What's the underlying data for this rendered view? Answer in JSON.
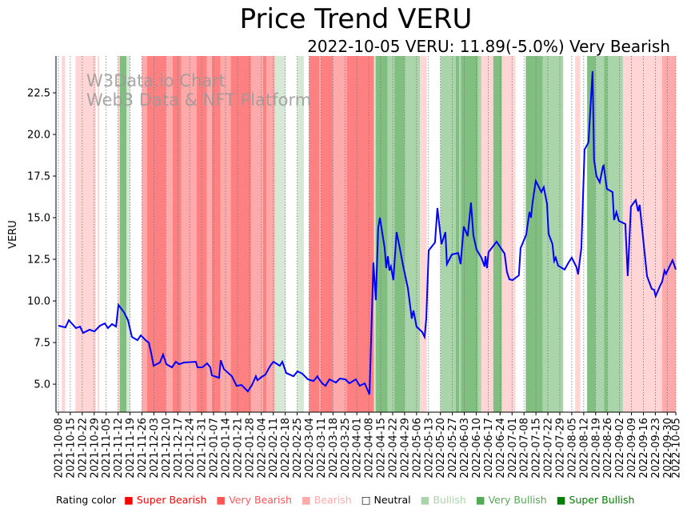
{
  "title": "Price Trend VERU",
  "subtitle": "2022-10-05 VERU: 11.89(-5.0%) Very Bearish",
  "watermark": [
    "W3Data.io Chart",
    "Web3 Data & NFT Platform"
  ],
  "legend": {
    "label": "Rating color",
    "items": [
      {
        "key": "super_bearish",
        "label": "Super Bearish",
        "color": "#ff0000"
      },
      {
        "key": "very_bearish",
        "label": "Very Bearish",
        "color": "#ff5555"
      },
      {
        "key": "bearish",
        "label": "Bearish",
        "color": "#ffaaaa"
      },
      {
        "key": "neutral",
        "label": "Neutral",
        "color": "#000000"
      },
      {
        "key": "bullish",
        "label": "Bullish",
        "color": "#aad4aa"
      },
      {
        "key": "very_bullish",
        "label": "Very Bullish",
        "color": "#55aa55"
      },
      {
        "key": "super_bullish",
        "label": "Super Bullish",
        "color": "#008000"
      }
    ]
  },
  "chart_data": {
    "type": "line",
    "title": "Price Trend VERU",
    "xlabel": "",
    "ylabel": "VERU",
    "start_date": "2021-10-08",
    "xlim_days": [
      -1.4,
      362
    ],
    "ylim": [
      3.32,
      24.71
    ],
    "line_color": "#0000ff",
    "yticks": [
      5.0,
      7.5,
      10.0,
      12.5,
      15.0,
      17.5,
      20.0,
      22.5
    ],
    "ytick_labels": [
      "5.0",
      "7.5",
      "10.0",
      "12.5",
      "15.0",
      "17.5",
      "20.0",
      "22.5"
    ],
    "xtick_days": [
      0,
      7,
      14,
      21,
      28,
      35,
      42,
      49,
      56,
      63,
      70,
      77,
      84,
      91,
      98,
      105,
      112,
      119,
      126,
      133,
      140,
      147,
      154,
      161,
      168,
      175,
      182,
      189,
      196,
      203,
      210,
      217,
      224,
      231,
      238,
      245,
      252,
      259,
      266,
      273,
      280,
      287,
      294,
      301,
      308,
      315,
      322,
      329,
      336,
      343,
      350,
      357,
      362
    ],
    "xtick_labels": [
      "2021-10-08",
      "2021-10-15",
      "2021-10-22",
      "2021-10-29",
      "2021-11-05",
      "2021-11-12",
      "2021-11-19",
      "2021-11-26",
      "2021-12-03",
      "2021-12-10",
      "2021-12-17",
      "2021-12-24",
      "2021-12-31",
      "2022-01-07",
      "2022-01-14",
      "2022-01-21",
      "2022-01-28",
      "2022-02-04",
      "2022-02-11",
      "2022-02-18",
      "2022-02-25",
      "2022-03-04",
      "2022-03-11",
      "2022-03-18",
      "2022-03-25",
      "2022-04-01",
      "2022-04-08",
      "2022-04-15",
      "2022-04-22",
      "2022-04-29",
      "2022-05-06",
      "2022-05-13",
      "2022-05-20",
      "2022-05-27",
      "2022-06-03",
      "2022-06-10",
      "2022-06-17",
      "2022-06-24",
      "2022-07-01",
      "2022-07-08",
      "2022-07-15",
      "2022-07-22",
      "2022-07-29",
      "2022-08-05",
      "2022-08-12",
      "2022-08-19",
      "2022-08-26",
      "2022-09-02",
      "2022-09-09",
      "2022-09-16",
      "2022-09-23",
      "2022-09-30",
      "2022-10-05"
    ],
    "rating_colors": {
      "super_bearish": "#ff8080",
      "very_bearish": "#ffaaaa",
      "bearish": "#ffd5d5",
      "bullish": "#d5ead5",
      "very_bullish": "#aad4aa",
      "super_bullish": "#80bf80"
    },
    "rating_bands": [
      [
        2,
        4,
        "bearish"
      ],
      [
        10,
        22,
        "bearish"
      ],
      [
        23,
        24,
        "bearish"
      ],
      [
        35,
        36,
        "bearish"
      ],
      [
        36,
        40,
        "super_bullish"
      ],
      [
        40,
        42,
        "bullish"
      ],
      [
        49,
        52,
        "very_bearish"
      ],
      [
        52,
        63,
        "super_bearish"
      ],
      [
        63,
        67,
        "very_bearish"
      ],
      [
        67,
        72,
        "super_bearish"
      ],
      [
        72,
        81,
        "very_bearish"
      ],
      [
        81,
        87,
        "super_bearish"
      ],
      [
        87,
        90,
        "very_bearish"
      ],
      [
        90,
        95,
        "super_bearish"
      ],
      [
        95,
        101,
        "very_bearish"
      ],
      [
        101,
        113,
        "super_bearish"
      ],
      [
        113,
        120,
        "very_bearish"
      ],
      [
        120,
        122,
        "super_bearish"
      ],
      [
        122,
        127,
        "very_bearish"
      ],
      [
        127,
        133,
        "bullish"
      ],
      [
        140,
        144,
        "bullish"
      ],
      [
        147,
        153,
        "super_bearish"
      ],
      [
        153,
        154,
        "very_bearish"
      ],
      [
        154,
        161,
        "super_bearish"
      ],
      [
        161,
        169,
        "very_bearish"
      ],
      [
        169,
        185,
        "super_bearish"
      ],
      [
        185,
        186,
        "bullish"
      ],
      [
        186,
        193,
        "super_bullish"
      ],
      [
        193,
        197,
        "very_bullish"
      ],
      [
        197,
        203,
        "super_bullish"
      ],
      [
        203,
        212,
        "very_bullish"
      ],
      [
        212,
        216,
        "bearish"
      ],
      [
        224,
        233,
        "very_bullish"
      ],
      [
        233,
        235,
        "super_bullish"
      ],
      [
        235,
        236,
        "very_bullish"
      ],
      [
        236,
        246,
        "super_bullish"
      ],
      [
        246,
        248,
        "very_bullish"
      ],
      [
        248,
        255,
        "bearish"
      ],
      [
        255,
        260,
        "super_bullish"
      ],
      [
        260,
        268,
        "bearish"
      ],
      [
        274,
        284,
        "super_bullish"
      ],
      [
        284,
        296,
        "very_bullish"
      ],
      [
        303,
        306,
        "bearish"
      ],
      [
        310,
        315,
        "super_bullish"
      ],
      [
        315,
        320,
        "very_bullish"
      ],
      [
        320,
        322,
        "super_bullish"
      ],
      [
        322,
        331,
        "very_bullish"
      ],
      [
        331,
        354,
        "bearish"
      ],
      [
        354,
        362,
        "very_bearish"
      ]
    ],
    "series": [
      {
        "name": "VERU",
        "days": [
          0,
          4.2,
          6.1,
          10.3,
          12.7,
          14.5,
          18.3,
          21.1,
          24.4,
          27.2,
          29.1,
          31.4,
          33.8,
          35.2,
          38.4,
          40.8,
          43.1,
          46.4,
          48.3,
          51.6,
          53.0,
          54.4,
          55.8,
          59.5,
          61.4,
          63.3,
          66.6,
          68.9,
          70.8,
          73.6,
          80.6,
          81.6,
          84.4,
          87.2,
          89.1,
          90.0,
          94.2,
          95.2,
          97.0,
          101.7,
          104.5,
          107.4,
          111.1,
          113.5,
          115.8,
          116.7,
          119.1,
          121.4,
          124.2,
          126.1,
          129.8,
          131.3,
          133.6,
          137.8,
          140.2,
          143.0,
          146.3,
          149.6,
          151.9,
          152.9,
          154.7,
          156.6,
          158.9,
          162.7,
          165.0,
          168.3,
          170.6,
          174.4,
          176.7,
          179.6,
          182.4,
          184.7,
          186.1,
          187.5,
          188.5,
          191.3,
          192.2,
          193.2,
          194.1,
          195.0,
          196.4,
          198.3,
          200.2,
          202.1,
          204.9,
          207.2,
          208.2,
          210.0,
          213.3,
          214.7,
          215.7,
          217.1,
          220.8,
          222.2,
          224.6,
          226.9,
          227.8,
          230.7,
          234.4,
          235.8,
          237.7,
          240.0,
          241.9,
          243.3,
          245.2,
          248.0,
          249.9,
          250.4,
          251.3,
          252.2,
          256.9,
          261.6,
          263.0,
          264.4,
          266.3,
          270.0,
          271.0,
          272.4,
          274.3,
          276.2,
          277.1,
          278.0,
          279.9,
          283.2,
          284.6,
          286.5,
          287.4,
          289.7,
          290.7,
          291.6,
          293.0,
          296.8,
          299.1,
          301.0,
          303.8,
          304.7,
          306.6,
          308.5,
          310.8,
          313.2,
          314.1,
          315.5,
          317.4,
          319.3,
          319.7,
          321.6,
          324.9,
          325.8,
          327.2,
          328.6,
          332.4,
          333.8,
          335.7,
          338.5,
          339.9,
          340.8,
          345.1,
          346.5,
          347.9,
          349.3,
          350.2,
          353.0,
          354.0,
          355.4,
          356.3,
          360.1,
          362
        ],
        "values": [
          8.51,
          8.41,
          8.85,
          8.37,
          8.46,
          8.08,
          8.27,
          8.17,
          8.51,
          8.65,
          8.37,
          8.61,
          8.46,
          9.76,
          9.33,
          8.85,
          7.84,
          7.64,
          7.93,
          7.6,
          7.5,
          6.88,
          6.11,
          6.3,
          6.78,
          6.2,
          6.01,
          6.35,
          6.2,
          6.3,
          6.35,
          6.01,
          6.01,
          6.25,
          6.01,
          5.53,
          5.38,
          6.44,
          5.91,
          5.48,
          4.9,
          4.95,
          4.57,
          4.95,
          5.48,
          5.24,
          5.43,
          5.58,
          6.11,
          6.35,
          6.11,
          6.35,
          5.67,
          5.48,
          5.77,
          5.63,
          5.29,
          5.19,
          5.48,
          5.29,
          5.05,
          4.9,
          5.29,
          5.1,
          5.34,
          5.29,
          5.05,
          5.29,
          4.9,
          5.05,
          4.38,
          12.31,
          10.05,
          14.38,
          15.0,
          13.17,
          11.97,
          12.69,
          11.83,
          12.07,
          11.25,
          14.13,
          13.17,
          12.12,
          10.77,
          8.94,
          9.42,
          8.46,
          8.13,
          7.84,
          8.94,
          13.03,
          13.51,
          15.58,
          13.41,
          14.13,
          12.21,
          12.79,
          12.88,
          12.21,
          14.47,
          13.89,
          15.91,
          13.94,
          13.08,
          12.6,
          12.07,
          12.69,
          11.97,
          12.93,
          13.56,
          12.84,
          11.73,
          11.3,
          11.25,
          11.54,
          13.17,
          13.51,
          13.99,
          15.34,
          15.0,
          15.91,
          17.21,
          16.54,
          16.83,
          15.82,
          14.04,
          13.41,
          12.4,
          12.6,
          12.12,
          11.88,
          12.31,
          12.6,
          12.02,
          11.59,
          13.17,
          19.09,
          19.52,
          23.8,
          18.46,
          17.5,
          17.12,
          18.08,
          18.13,
          16.73,
          16.54,
          14.86,
          15.34,
          14.81,
          14.62,
          11.49,
          15.67,
          16.06,
          15.38,
          15.77,
          11.49,
          11.11,
          10.72,
          10.67,
          10.29,
          10.96,
          11.15,
          11.83,
          11.63,
          12.45,
          11.89
        ]
      }
    ]
  }
}
